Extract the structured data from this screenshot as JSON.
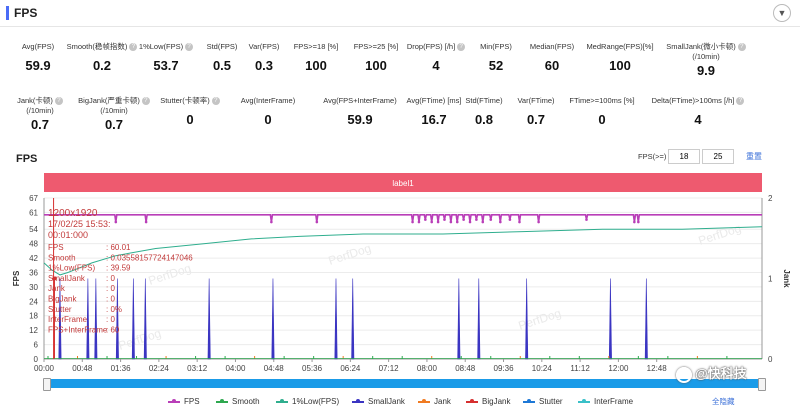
{
  "header": {
    "title": "FPS",
    "collapse_icon": "chevron-down-icon"
  },
  "stats_row1": [
    {
      "label": "Avg(FPS)",
      "value": "59.9",
      "help": false
    },
    {
      "label": "Smooth(稳帧指数)",
      "value": "0.2",
      "help": true
    },
    {
      "label": "1%Low(FPS)",
      "value": "53.7",
      "help": true
    },
    {
      "label": "Std(FPS)",
      "value": "0.5",
      "help": false
    },
    {
      "label": "Var(FPS)",
      "value": "0.3",
      "help": false
    },
    {
      "label": "FPS>=18 [%]",
      "value": "100",
      "help": false
    },
    {
      "label": "FPS>=25 [%]",
      "value": "100",
      "help": false
    },
    {
      "label": "Drop(FPS) [/h]",
      "value": "4",
      "help": true
    },
    {
      "label": "Min(FPS)",
      "value": "52",
      "help": false
    },
    {
      "label": "Median(FPS)",
      "value": "60",
      "help": false
    },
    {
      "label": "MedRange(FPS)[%]",
      "value": "100",
      "help": false
    },
    {
      "label": "SmallJank(微小卡顿)",
      "label2": "(/10min)",
      "value": "9.9",
      "help": true
    }
  ],
  "stats_row2": [
    {
      "label": "Jank(卡顿)",
      "label2": "(/10min)",
      "value": "0.7",
      "help": true
    },
    {
      "label": "BigJank(严重卡顿)",
      "label2": "(/10min)",
      "value": "0.7",
      "help": true
    },
    {
      "label": "Stutter(卡顿率)",
      "value": "0",
      "help": true
    },
    {
      "label": "Avg(InterFrame)",
      "value": "0",
      "help": false
    },
    {
      "label": "Avg(FPS+InterFrame)",
      "value": "59.9",
      "help": false
    },
    {
      "label": "Avg(FTime) [ms]",
      "value": "16.7",
      "help": false
    },
    {
      "label": "Std(FTime)",
      "value": "0.8",
      "help": false
    },
    {
      "label": "Var(FTime)",
      "value": "0.7",
      "help": false
    },
    {
      "label": "FTime>=100ms [%]",
      "value": "0",
      "help": false
    },
    {
      "label": "Delta(FTime)>100ms [/h]",
      "value": "4",
      "help": true
    }
  ],
  "chart_section": {
    "title": "FPS",
    "threshold_label": "FPS(>=)",
    "threshold_1": "18",
    "threshold_2": "25",
    "reset_label": "重置",
    "hide_all_label": "全隐藏"
  },
  "watermark": "@快科技",
  "chart_data": {
    "type": "line",
    "band_label": "label1",
    "ylabel_left": "FPS",
    "ylabel_right": "Jank",
    "y_left_ticks": [
      "67",
      "61",
      "54",
      "48",
      "42",
      "36",
      "30",
      "24",
      "18",
      "12",
      "6",
      "0"
    ],
    "y_left_range": [
      0,
      67
    ],
    "y_right_ticks": [
      "0",
      "1",
      "2"
    ],
    "y_right_range": [
      0,
      2
    ],
    "x_range_s": [
      0,
      900
    ],
    "x_ticks": [
      "00:00",
      "00:48",
      "01:36",
      "02:24",
      "03:12",
      "04:00",
      "04:48",
      "05:36",
      "06:24",
      "07:12",
      "08:00",
      "08:48",
      "09:36",
      "10:24",
      "11:12",
      "12:00",
      "12:48"
    ],
    "x_tick_seconds": [
      0,
      48,
      96,
      144,
      192,
      240,
      288,
      336,
      384,
      432,
      480,
      528,
      576,
      624,
      672,
      720,
      768
    ],
    "series": [
      {
        "name": "FPS",
        "color": "#b93fb8",
        "kind": "fps"
      },
      {
        "name": "Smooth",
        "color": "#2ea84f",
        "kind": "smooth"
      },
      {
        "name": "1%Low(FPS)",
        "color": "#2fae8e",
        "kind": "low"
      },
      {
        "name": "SmallJank",
        "color": "#3b35c2",
        "kind": "smalljank"
      },
      {
        "name": "Jank",
        "color": "#f07b22",
        "kind": "jank"
      },
      {
        "name": "BigJank",
        "color": "#d62f2f",
        "kind": "bigjank"
      },
      {
        "name": "Stutter",
        "color": "#1e78d6",
        "kind": "stutter"
      },
      {
        "name": "InterFrame",
        "color": "#3ac0c8",
        "kind": "interframe"
      }
    ],
    "fps_value": 60,
    "fps_dips": [
      [
        90,
        57
      ],
      [
        128,
        57
      ],
      [
        285,
        57
      ],
      [
        342,
        57
      ],
      [
        462,
        57
      ],
      [
        470,
        57
      ],
      [
        478,
        58
      ],
      [
        486,
        57
      ],
      [
        494,
        57
      ],
      [
        502,
        58
      ],
      [
        510,
        57
      ],
      [
        518,
        57
      ],
      [
        526,
        58
      ],
      [
        534,
        57
      ],
      [
        542,
        58
      ],
      [
        550,
        57
      ],
      [
        560,
        58
      ],
      [
        572,
        57
      ],
      [
        584,
        58
      ],
      [
        596,
        57
      ],
      [
        620,
        57
      ],
      [
        680,
        58
      ],
      [
        740,
        57
      ],
      [
        745,
        57
      ]
    ],
    "low_points": [
      [
        0,
        40
      ],
      [
        10,
        37
      ],
      [
        20,
        35
      ],
      [
        30,
        36
      ],
      [
        45,
        38
      ],
      [
        60,
        40
      ],
      [
        90,
        43
      ],
      [
        140,
        46
      ],
      [
        200,
        48
      ],
      [
        260,
        50
      ],
      [
        320,
        51
      ],
      [
        400,
        52
      ],
      [
        500,
        52
      ],
      [
        600,
        53
      ],
      [
        700,
        54
      ],
      [
        800,
        54
      ],
      [
        900,
        55
      ]
    ],
    "smalljank_times": [
      20,
      55,
      65,
      92,
      112,
      127,
      207,
      287,
      366,
      387,
      520,
      545,
      605,
      710,
      755
    ],
    "bigjank_times": [
      13
    ],
    "tooltip": {
      "lines": [
        "1200x1920",
        "17/02/25 15:53:",
        "00:01:000"
      ],
      "rows": [
        [
          "FPS",
          ": 60.01"
        ],
        [
          "Smooth",
          ": 0.03558157724147046"
        ],
        [
          "1%Low(FPS)",
          ": 39.59"
        ],
        [
          "SmallJank",
          ": 0"
        ],
        [
          "Jank",
          ": 0"
        ],
        [
          "BigJank",
          ": 0"
        ],
        [
          "Stutter",
          ": 0%"
        ],
        [
          "InterFrame",
          ": 0"
        ],
        [
          "FPS+InterFrame",
          ": 60"
        ]
      ]
    },
    "watermark_text": "PerfDog"
  }
}
